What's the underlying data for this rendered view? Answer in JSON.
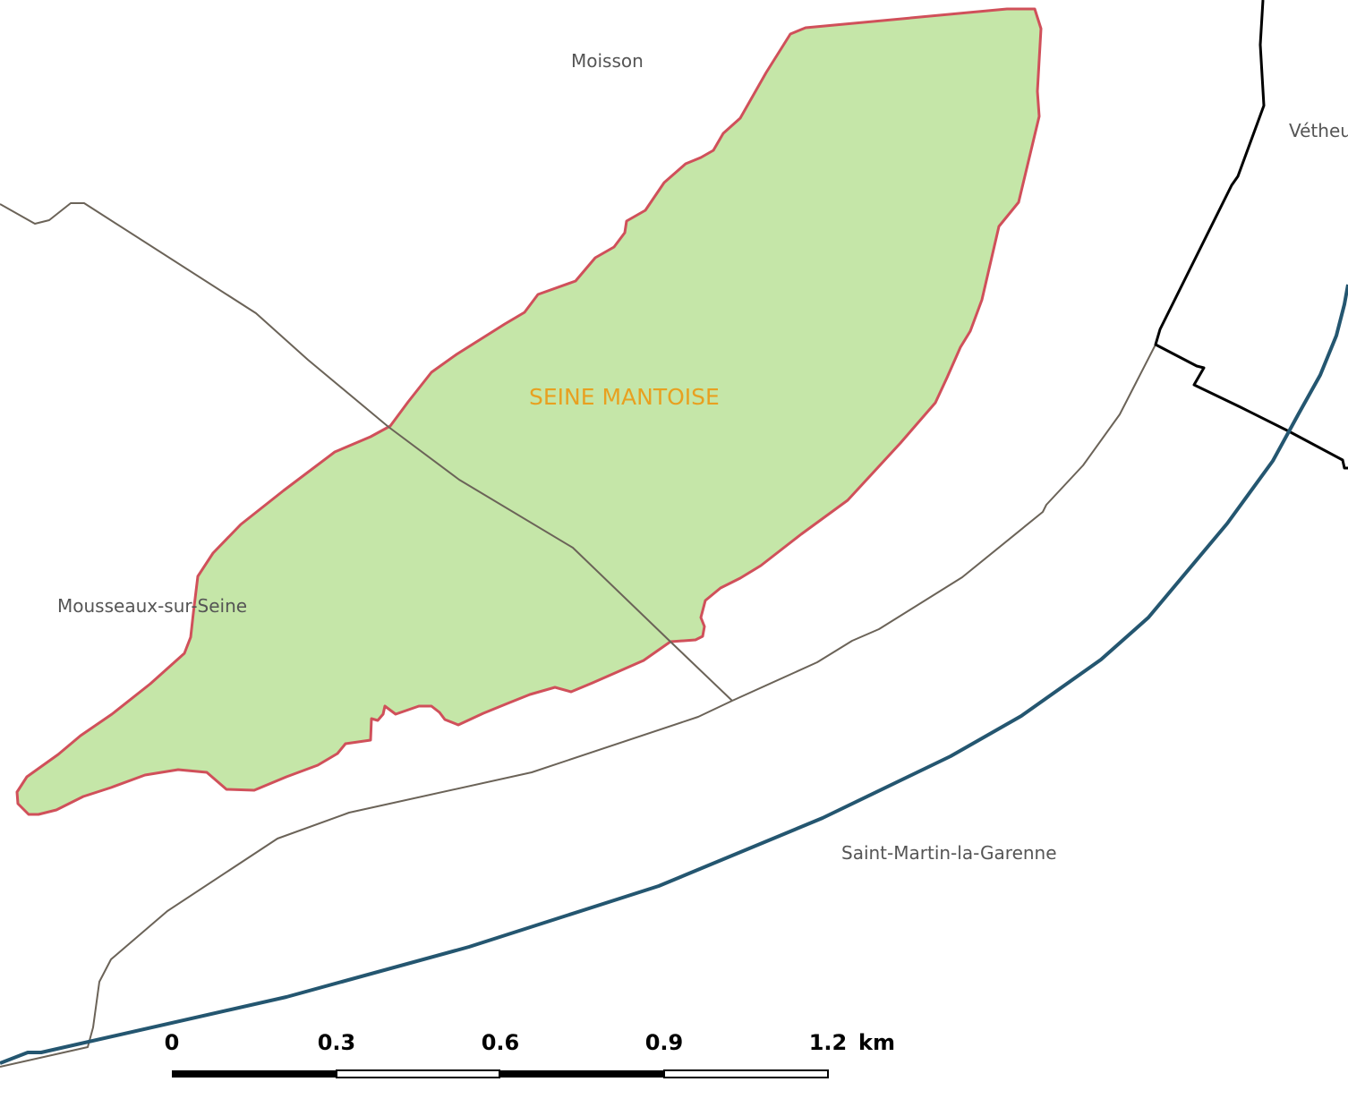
{
  "zone": {
    "name": "SEINE MANTOISE",
    "fill_color": "#c5e6a8",
    "outline_color": "#d0505a",
    "label_color": "#e8a020"
  },
  "communes": {
    "north": "Moisson",
    "northeast": "Vétheu",
    "west": "Mousseaux-sur-Seine",
    "southeast": "Saint-Martin-la-Garenne"
  },
  "colors": {
    "commune_boundary": "#6b6358",
    "department_boundary": "#000000",
    "river": "#245670"
  },
  "scale_bar": {
    "ticks": [
      "0",
      "0.3",
      "0.6",
      "0.9",
      "1.2"
    ],
    "unit": "km"
  }
}
